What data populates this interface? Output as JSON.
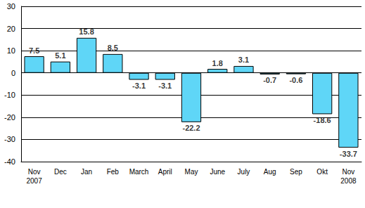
{
  "chart_data": {
    "type": "bar",
    "categories": [
      "Nov\n2007",
      "Dec",
      "Jan",
      "Feb",
      "March",
      "April",
      "May",
      "June",
      "July",
      "Aug",
      "Sep",
      "Okt",
      "Nov\n2008"
    ],
    "values": [
      7.5,
      5.1,
      15.8,
      8.5,
      -3.1,
      -3.1,
      -22.2,
      1.8,
      3.1,
      -0.7,
      -0.6,
      -18.6,
      -33.7
    ],
    "color": "#5fd6f7",
    "ylim": [
      -40,
      30
    ],
    "yticks": [
      -40,
      -30,
      -20,
      -10,
      0,
      10,
      20,
      30
    ],
    "grid": true,
    "data_labels": true
  }
}
